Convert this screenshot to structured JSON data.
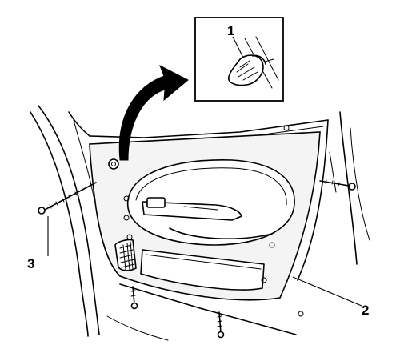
{
  "callouts": {
    "detail_clip": "1",
    "door_trim_panel": "2",
    "screw": "3"
  },
  "colors": {
    "line": "#000000",
    "background": "#ffffff",
    "panel_fill": "#f4f4f4",
    "arrow": "#000000"
  }
}
